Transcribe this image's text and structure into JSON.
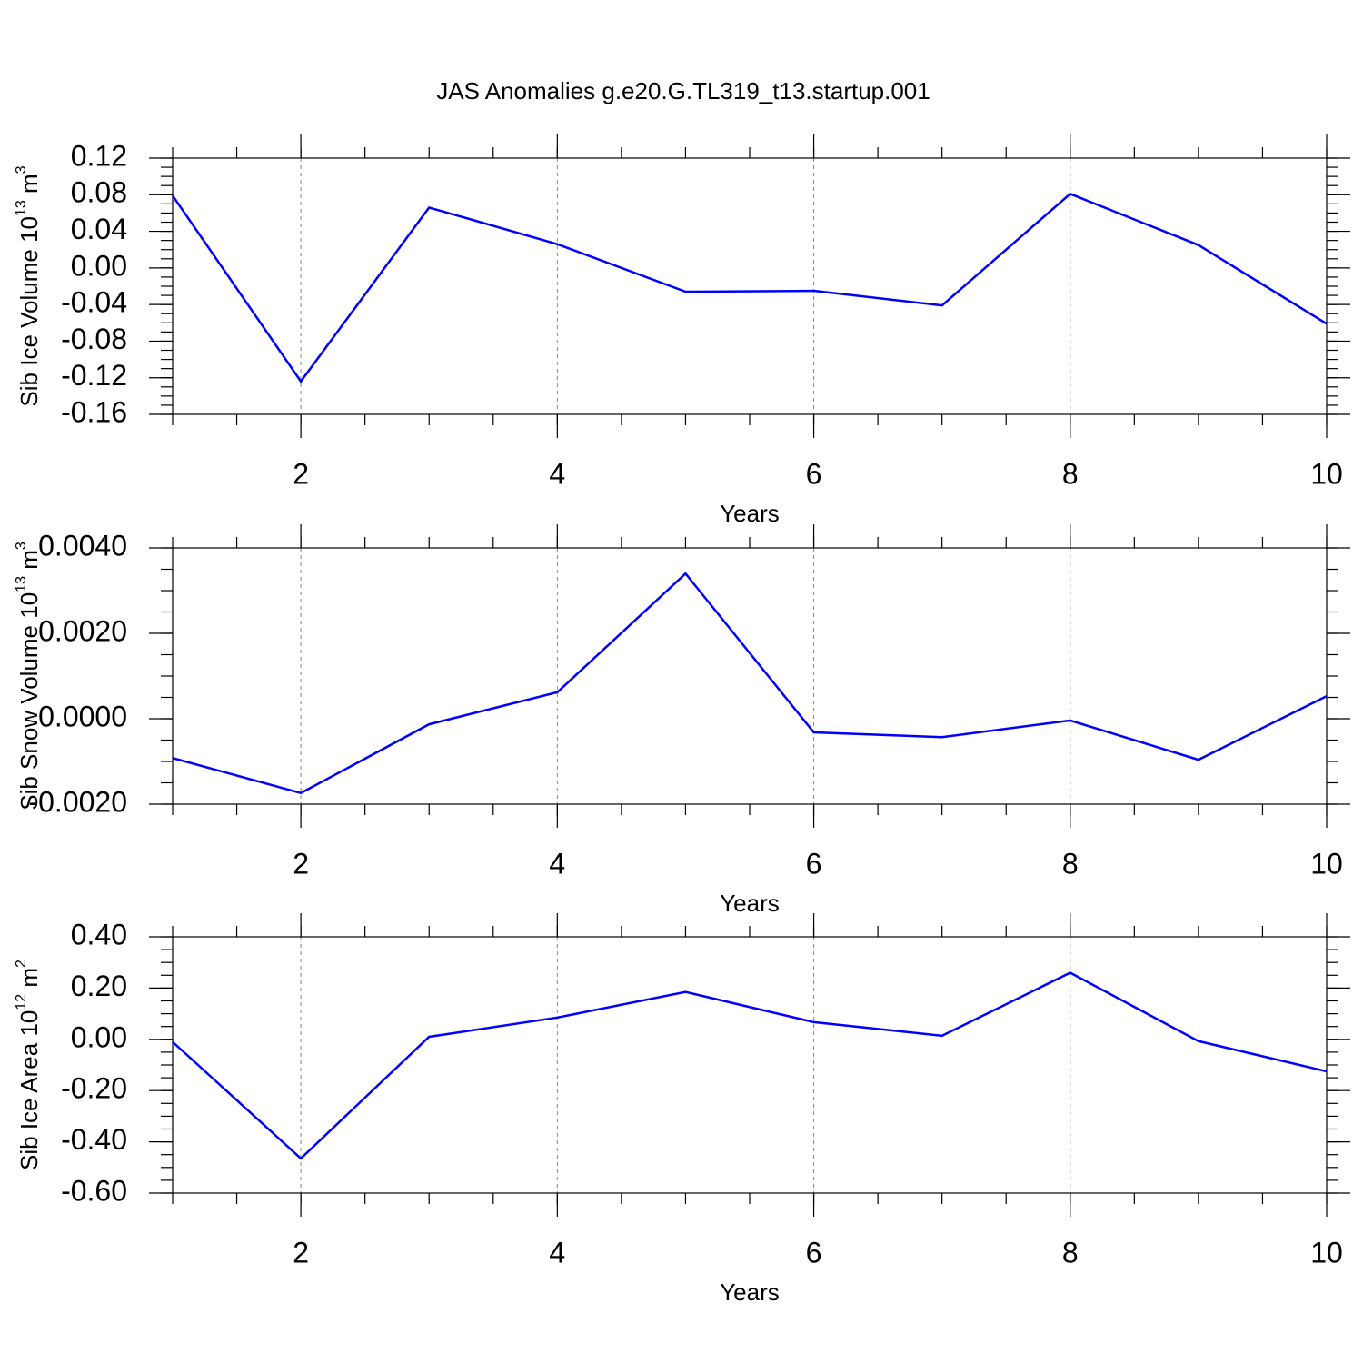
{
  "title": "JAS Anomalies g.e20.G.TL319_t13.startup.001",
  "chart_data": [
    {
      "type": "line",
      "ylabel": [
        "Sib Ice Volume 10",
        "13",
        " m",
        "3"
      ],
      "xlabel": "Years",
      "x": [
        1,
        2,
        3,
        4,
        5,
        6,
        7,
        8,
        9,
        10
      ],
      "series": [
        {
          "color": "#0000ff",
          "values": [
            0.079,
            -0.124,
            0.066,
            0.026,
            -0.026,
            -0.025,
            -0.041,
            0.081,
            0.025,
            -0.061
          ]
        }
      ],
      "xlim": [
        1,
        10
      ],
      "xticks": [
        2,
        4,
        6,
        8,
        10
      ],
      "ylim": [
        -0.16,
        0.12
      ],
      "yticks": [
        0.12,
        0.08,
        0.04,
        {
          "value": 0,
          "label": "0.00"
        },
        -0.04,
        -0.08,
        -0.12,
        -0.16
      ],
      "grid": true
    },
    {
      "type": "line",
      "ylabel": [
        "Sib Snow Volume 10",
        "13",
        " m",
        "3"
      ],
      "xlabel": "Years",
      "x": [
        1,
        2,
        3,
        4,
        5,
        6,
        7,
        8,
        9,
        10
      ],
      "series": [
        {
          "color": "#0000ff",
          "values": [
            -0.00092,
            -0.00174,
            -0.00013,
            0.00062,
            0.0034,
            -0.00032,
            -0.00043,
            -4e-05,
            -0.00096,
            0.00053
          ]
        }
      ],
      "xlim": [
        1,
        10
      ],
      "xticks": [
        2,
        4,
        6,
        8,
        10
      ],
      "ylim": [
        -0.002,
        0.004
      ],
      "yticks": [
        {
          "value": 0.004,
          "label": "0.0040"
        },
        {
          "value": 0.002,
          "label": "0.0020"
        },
        {
          "value": 0,
          "label": "0.0000"
        },
        {
          "value": -0.002,
          "label": "-0.0020"
        }
      ],
      "grid": true
    },
    {
      "type": "line",
      "ylabel": [
        "Sib Ice Area 10",
        "12",
        " m",
        "2"
      ],
      "xlabel": "Years",
      "x": [
        1,
        2,
        3,
        4,
        5,
        6,
        7,
        8,
        9,
        10
      ],
      "series": [
        {
          "color": "#0000ff",
          "values": [
            -0.01,
            -0.465,
            0.01,
            0.085,
            0.185,
            0.067,
            0.014,
            0.26,
            -0.007,
            -0.125
          ]
        }
      ],
      "xlim": [
        1,
        10
      ],
      "xticks": [
        2,
        4,
        6,
        8,
        10
      ],
      "ylim": [
        -0.6,
        0.4
      ],
      "yticks": [
        {
          "value": 0.4,
          "label": "0.40"
        },
        {
          "value": 0.2,
          "label": "0.20"
        },
        {
          "value": 0,
          "label": "0.00"
        },
        {
          "value": -0.2,
          "label": "-0.20"
        },
        {
          "value": -0.4,
          "label": "-0.40"
        },
        {
          "value": -0.6,
          "label": "-0.60"
        }
      ],
      "grid": true
    }
  ]
}
